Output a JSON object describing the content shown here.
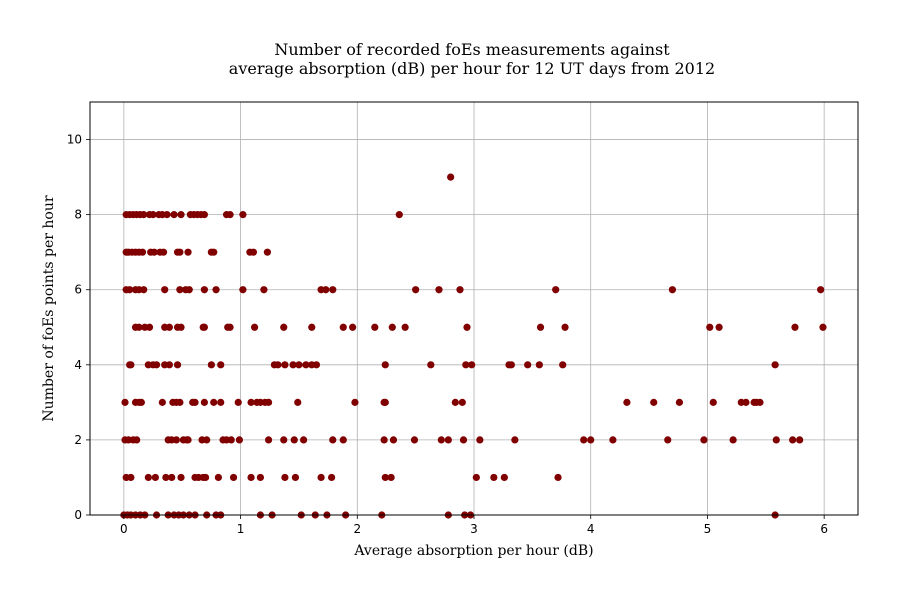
{
  "chart_data": {
    "type": "scatter",
    "title_lines": [
      "Number of recorded foEs measurements against",
      "average absorption (dB) per hour for 12 UT days from 2012"
    ],
    "xlabel": "Average absorption per hour (dB)",
    "ylabel": "Number of foEs points per hour",
    "xlim": [
      -0.29,
      6.29
    ],
    "ylim": [
      0,
      11
    ],
    "xticks": [
      0,
      1,
      2,
      3,
      4,
      5,
      6
    ],
    "yticks": [
      0,
      2,
      4,
      6,
      8,
      10
    ],
    "grid": true,
    "marker_color": "#800000",
    "points": [
      [
        0.02,
        8
      ],
      [
        0.05,
        8
      ],
      [
        0.08,
        8
      ],
      [
        0.11,
        8
      ],
      [
        0.14,
        8
      ],
      [
        0.17,
        8
      ],
      [
        0.22,
        8
      ],
      [
        0.25,
        8
      ],
      [
        0.3,
        8
      ],
      [
        0.33,
        8
      ],
      [
        0.37,
        8
      ],
      [
        0.43,
        8
      ],
      [
        0.49,
        8
      ],
      [
        0.57,
        8
      ],
      [
        0.6,
        8
      ],
      [
        0.63,
        8
      ],
      [
        0.66,
        8
      ],
      [
        0.69,
        8
      ],
      [
        0.88,
        8
      ],
      [
        0.91,
        8
      ],
      [
        1.02,
        8
      ],
      [
        2.36,
        8
      ],
      [
        0.02,
        7
      ],
      [
        0.04,
        7
      ],
      [
        0.07,
        7
      ],
      [
        0.1,
        7
      ],
      [
        0.13,
        7
      ],
      [
        0.16,
        7
      ],
      [
        0.23,
        7
      ],
      [
        0.26,
        7
      ],
      [
        0.31,
        7
      ],
      [
        0.34,
        7
      ],
      [
        0.46,
        7
      ],
      [
        0.48,
        7
      ],
      [
        0.55,
        7
      ],
      [
        0.75,
        7
      ],
      [
        0.77,
        7
      ],
      [
        1.08,
        7
      ],
      [
        1.11,
        7
      ],
      [
        1.23,
        7
      ],
      [
        0.02,
        6
      ],
      [
        0.05,
        6
      ],
      [
        0.1,
        6
      ],
      [
        0.13,
        6
      ],
      [
        0.17,
        6
      ],
      [
        0.35,
        6
      ],
      [
        0.48,
        6
      ],
      [
        0.53,
        6
      ],
      [
        0.56,
        6
      ],
      [
        0.69,
        6
      ],
      [
        0.79,
        6
      ],
      [
        1.02,
        6
      ],
      [
        1.2,
        6
      ],
      [
        1.69,
        6
      ],
      [
        1.73,
        6
      ],
      [
        1.79,
        6
      ],
      [
        2.5,
        6
      ],
      [
        2.7,
        6
      ],
      [
        2.88,
        6
      ],
      [
        3.7,
        6
      ],
      [
        4.7,
        6
      ],
      [
        5.97,
        6
      ],
      [
        0.1,
        5
      ],
      [
        0.13,
        5
      ],
      [
        0.18,
        5
      ],
      [
        0.22,
        5
      ],
      [
        0.35,
        5
      ],
      [
        0.39,
        5
      ],
      [
        0.46,
        5
      ],
      [
        0.49,
        5
      ],
      [
        0.68,
        5
      ],
      [
        0.69,
        5
      ],
      [
        0.89,
        5
      ],
      [
        0.91,
        5
      ],
      [
        1.12,
        5
      ],
      [
        1.37,
        5
      ],
      [
        1.61,
        5
      ],
      [
        1.88,
        5
      ],
      [
        1.96,
        5
      ],
      [
        2.15,
        5
      ],
      [
        2.3,
        5
      ],
      [
        2.41,
        5
      ],
      [
        2.94,
        5
      ],
      [
        3.57,
        5
      ],
      [
        3.78,
        5
      ],
      [
        5.02,
        5
      ],
      [
        5.1,
        5
      ],
      [
        5.75,
        5
      ],
      [
        5.99,
        5
      ],
      [
        0.05,
        4
      ],
      [
        0.06,
        4
      ],
      [
        0.21,
        4
      ],
      [
        0.25,
        4
      ],
      [
        0.28,
        4
      ],
      [
        0.35,
        4
      ],
      [
        0.39,
        4
      ],
      [
        0.46,
        4
      ],
      [
        0.75,
        4
      ],
      [
        0.83,
        4
      ],
      [
        1.29,
        4
      ],
      [
        1.32,
        4
      ],
      [
        1.38,
        4
      ],
      [
        1.45,
        4
      ],
      [
        1.5,
        4
      ],
      [
        1.56,
        4
      ],
      [
        1.61,
        4
      ],
      [
        1.65,
        4
      ],
      [
        2.24,
        4
      ],
      [
        2.63,
        4
      ],
      [
        2.93,
        4
      ],
      [
        2.98,
        4
      ],
      [
        3.3,
        4
      ],
      [
        3.32,
        4
      ],
      [
        3.46,
        4
      ],
      [
        3.56,
        4
      ],
      [
        3.76,
        4
      ],
      [
        5.58,
        4
      ],
      [
        0.01,
        3
      ],
      [
        0.1,
        3
      ],
      [
        0.13,
        3
      ],
      [
        0.15,
        3
      ],
      [
        0.33,
        3
      ],
      [
        0.42,
        3
      ],
      [
        0.45,
        3
      ],
      [
        0.48,
        3
      ],
      [
        0.59,
        3
      ],
      [
        0.61,
        3
      ],
      [
        0.69,
        3
      ],
      [
        0.77,
        3
      ],
      [
        0.83,
        3
      ],
      [
        0.98,
        3
      ],
      [
        1.09,
        3
      ],
      [
        1.14,
        3
      ],
      [
        1.17,
        3
      ],
      [
        1.21,
        3
      ],
      [
        1.24,
        3
      ],
      [
        1.49,
        3
      ],
      [
        1.98,
        3
      ],
      [
        2.23,
        3
      ],
      [
        2.24,
        3
      ],
      [
        2.84,
        3
      ],
      [
        2.9,
        3
      ],
      [
        4.31,
        3
      ],
      [
        4.54,
        3
      ],
      [
        4.76,
        3
      ],
      [
        5.05,
        3
      ],
      [
        5.29,
        3
      ],
      [
        5.33,
        3
      ],
      [
        5.4,
        3
      ],
      [
        5.42,
        3
      ],
      [
        5.45,
        3
      ],
      [
        0.01,
        2
      ],
      [
        0.04,
        2
      ],
      [
        0.08,
        2
      ],
      [
        0.11,
        2
      ],
      [
        0.38,
        2
      ],
      [
        0.41,
        2
      ],
      [
        0.45,
        2
      ],
      [
        0.51,
        2
      ],
      [
        0.54,
        2
      ],
      [
        0.55,
        2
      ],
      [
        0.67,
        2
      ],
      [
        0.71,
        2
      ],
      [
        0.85,
        2
      ],
      [
        0.88,
        2
      ],
      [
        0.92,
        2
      ],
      [
        0.99,
        2
      ],
      [
        1.24,
        2
      ],
      [
        1.37,
        2
      ],
      [
        1.46,
        2
      ],
      [
        1.54,
        2
      ],
      [
        1.79,
        2
      ],
      [
        1.88,
        2
      ],
      [
        2.23,
        2
      ],
      [
        2.31,
        2
      ],
      [
        2.49,
        2
      ],
      [
        2.72,
        2
      ],
      [
        2.78,
        2
      ],
      [
        2.91,
        2
      ],
      [
        3.05,
        2
      ],
      [
        3.35,
        2
      ],
      [
        3.94,
        2
      ],
      [
        4.0,
        2
      ],
      [
        4.19,
        2
      ],
      [
        4.66,
        2
      ],
      [
        4.97,
        2
      ],
      [
        5.22,
        2
      ],
      [
        5.59,
        2
      ],
      [
        5.73,
        2
      ],
      [
        5.79,
        2
      ],
      [
        0.02,
        1
      ],
      [
        0.06,
        1
      ],
      [
        0.21,
        1
      ],
      [
        0.27,
        1
      ],
      [
        0.36,
        1
      ],
      [
        0.41,
        1
      ],
      [
        0.49,
        1
      ],
      [
        0.61,
        1
      ],
      [
        0.64,
        1
      ],
      [
        0.68,
        1
      ],
      [
        0.7,
        1
      ],
      [
        0.81,
        1
      ],
      [
        0.94,
        1
      ],
      [
        1.09,
        1
      ],
      [
        1.17,
        1
      ],
      [
        1.38,
        1
      ],
      [
        1.47,
        1
      ],
      [
        1.69,
        1
      ],
      [
        1.78,
        1
      ],
      [
        2.24,
        1
      ],
      [
        2.29,
        1
      ],
      [
        3.02,
        1
      ],
      [
        3.17,
        1
      ],
      [
        3.26,
        1
      ],
      [
        3.72,
        1
      ],
      [
        0.0,
        0
      ],
      [
        0.03,
        0
      ],
      [
        0.06,
        0
      ],
      [
        0.1,
        0
      ],
      [
        0.14,
        0
      ],
      [
        0.18,
        0
      ],
      [
        0.28,
        0
      ],
      [
        0.38,
        0
      ],
      [
        0.43,
        0
      ],
      [
        0.47,
        0
      ],
      [
        0.51,
        0
      ],
      [
        0.56,
        0
      ],
      [
        0.61,
        0
      ],
      [
        0.71,
        0
      ],
      [
        0.79,
        0
      ],
      [
        0.83,
        0
      ],
      [
        1.17,
        0
      ],
      [
        1.27,
        0
      ],
      [
        1.52,
        0
      ],
      [
        1.64,
        0
      ],
      [
        1.74,
        0
      ],
      [
        1.9,
        0
      ],
      [
        2.21,
        0
      ],
      [
        2.78,
        0
      ],
      [
        2.92,
        0
      ],
      [
        2.97,
        0
      ],
      [
        5.58,
        0
      ],
      [
        2.8,
        9
      ]
    ]
  }
}
